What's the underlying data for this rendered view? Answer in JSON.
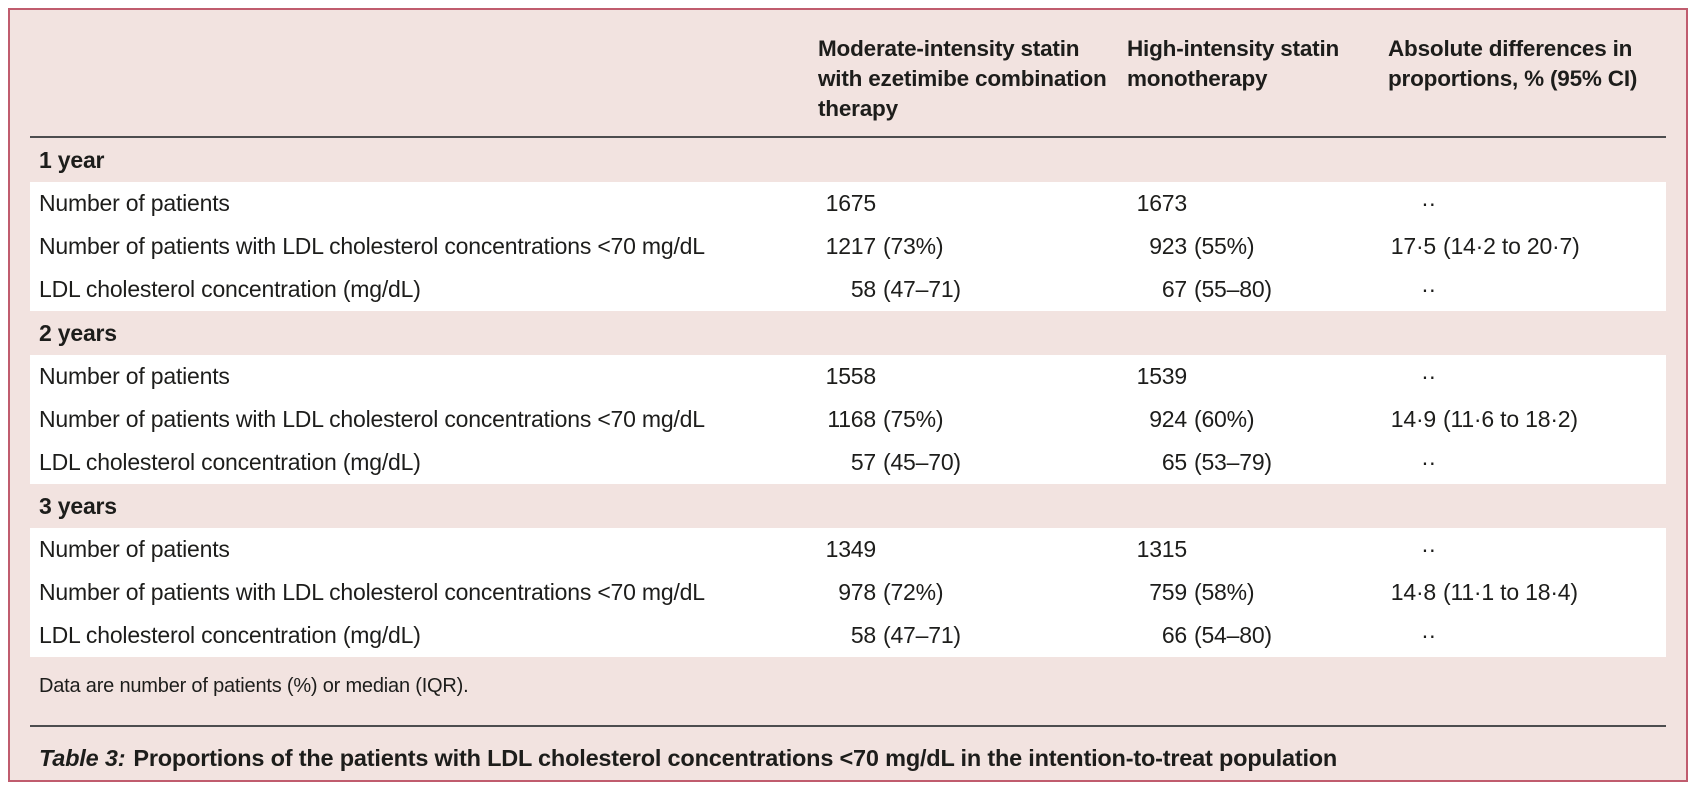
{
  "colors": {
    "figure_background": "#f2e3e0",
    "figure_border": "#c05c6e",
    "row_background": "#ffffff",
    "text": "#1d1d1b",
    "rule": "#4d4d4f"
  },
  "table": {
    "columns": [
      "Moderate-intensity statin with ezetimibe combination therapy",
      "High-intensity statin monotherapy",
      "Absolute differences in proportions, % (95% CI)"
    ],
    "sections": [
      {
        "header": "1 year",
        "rows": [
          {
            "label": "Number of patients",
            "values": [
              "1675",
              "1673",
              "··"
            ]
          },
          {
            "label": "Number of patients with LDL cholesterol concentrations <70 mg/dL",
            "values": [
              "1217 (73%)",
              "923 (55%)",
              "17·5 (14·2 to 20·7)"
            ]
          },
          {
            "label": "LDL cholesterol concentration (mg/dL)",
            "values": [
              "58 (47–71)",
              "67 (55–80)",
              "··"
            ]
          }
        ]
      },
      {
        "header": "2 years",
        "rows": [
          {
            "label": "Number of patients",
            "values": [
              "1558",
              "1539",
              "··"
            ]
          },
          {
            "label": "Number of patients with LDL cholesterol concentrations <70 mg/dL",
            "values": [
              "1168 (75%)",
              "924 (60%)",
              "14·9 (11·6 to 18·2)"
            ]
          },
          {
            "label": "LDL cholesterol concentration (mg/dL)",
            "values": [
              "57 (45–70)",
              "65 (53–79)",
              "··"
            ]
          }
        ]
      },
      {
        "header": "3 years",
        "rows": [
          {
            "label": "Number of patients",
            "values": [
              "1349",
              "1315",
              "··"
            ]
          },
          {
            "label": "Number of patients with LDL cholesterol concentrations <70 mg/dL",
            "values": [
              "978 (72%)",
              "759 (58%)",
              "14·8 (11·1 to 18·4)"
            ]
          },
          {
            "label": "LDL cholesterol concentration (mg/dL)",
            "values": [
              "58 (47–71)",
              "66 (54–80)",
              "··"
            ]
          }
        ]
      }
    ],
    "footnote": "Data are number of patients (%) or median (IQR).",
    "caption_label": "Table 3:",
    "caption_text": "Proportions of the patients with LDL cholesterol concentrations <70 mg/dL in the intention-to-treat population"
  }
}
